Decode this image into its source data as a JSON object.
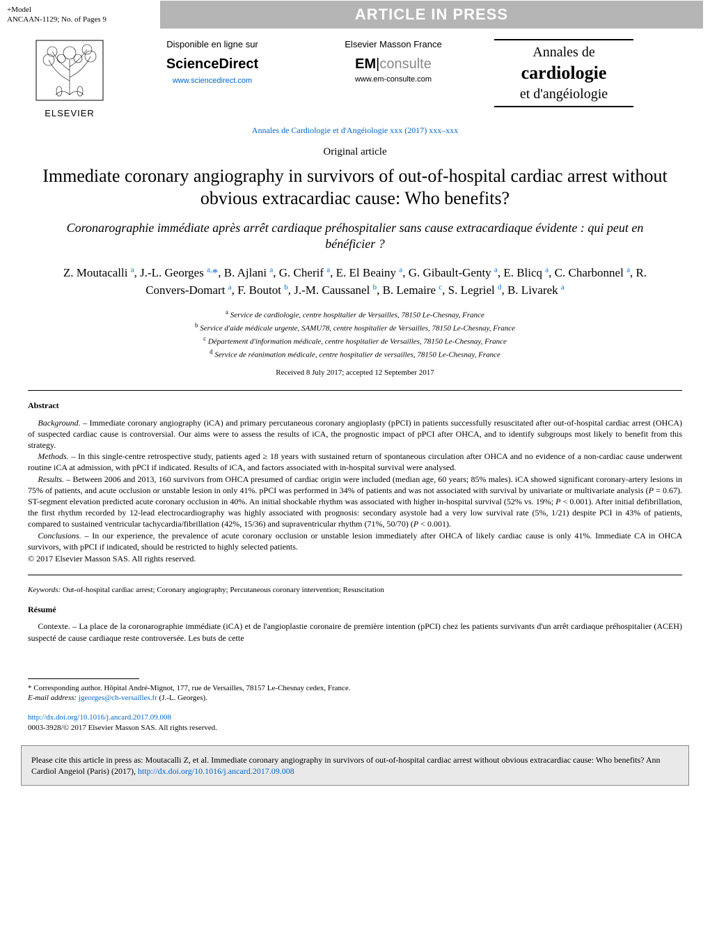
{
  "header": {
    "model_line1": "+Model",
    "model_line2": "ANCAAN-1129;    No. of Pages 9",
    "aip_text": "ARTICLE IN PRESS"
  },
  "banner": {
    "elsevier_label": "ELSEVIER",
    "sd_top": "Disponible en ligne sur",
    "sd_brand": "ScienceDirect",
    "sd_link": "www.sciencedirect.com",
    "em_top": "Elsevier Masson France",
    "em_brand_bold": "EM",
    "em_brand_thin": "consulte",
    "em_link": "www.em-consulte.com",
    "journal_line1": "Annales de",
    "journal_line2": "cardiologie",
    "journal_line3": "et d'angéiologie",
    "annals_citation": "Annales de Cardiologie et d'Angéiologie xxx (2017) xxx–xxx"
  },
  "article": {
    "type": "Original article",
    "title_en": "Immediate coronary angiography in survivors of out-of-hospital cardiac arrest without obvious extracardiac cause: Who benefits?",
    "title_fr": "Coronarographie immédiate après arrêt cardiaque préhospitalier sans cause extracardiaque évidente : qui peut en bénéficier ?",
    "authors_html": "Z. Moutacalli <sup>a</sup>, J.-L. Georges <sup>a,</sup><span class='ast'>*</span>, B. Ajlani <sup>a</sup>, G. Cherif <sup>a</sup>, E. El Beainy <sup>a</sup>, G. Gibault-Genty <sup>a</sup>, E. Blicq <sup>a</sup>, C. Charbonnel <sup>a</sup>, R. Convers-Domart <sup>a</sup>, F. Boutot <sup>b</sup>, J.-M. Caussanel <sup>b</sup>, B. Lemaire <sup>c</sup>, S. Legriel <sup>d</sup>, B. Livarek <sup>a</sup>",
    "affiliations": [
      "<sup>a</sup> Service de cardiologie, centre hospitalier de Versailles, 78150 Le-Chesnay, France",
      "<sup>b</sup> Service d'aide médicale urgente, SAMU78, centre hospitalier de Versailles, 78150 Le-Chesnay, France",
      "<sup>c</sup> Département d'information médicale, centre hospitalier de Versailles, 78150 Le-Chesnay, France",
      "<sup>d</sup> Service de réanimation médicale, centre hospitalier de versailles, 78150 Le-Chesnay, France"
    ],
    "dates": "Received 8 July 2017; accepted 12 September 2017"
  },
  "abstract": {
    "heading": "Abstract",
    "background": "<span class='ital-lead'>Background.</span> – Immediate coronary angiography (iCA) and primary percutaneous coronary angioplasty (pPCI) in patients successfully resuscitated after out-of-hospital cardiac arrest (OHCA) of suspected cardiac cause is controversial. Our aims were to assess the results of iCA, the prognostic impact of pPCI after OHCA, and to identify subgroups most likely to benefit from this strategy.",
    "methods": "<span class='ital-lead'>Methods.</span> – In this single-centre retrospective study, patients aged ≥ 18 years with sustained return of spontaneous circulation after OHCA and no evidence of a non-cardiac cause underwent routine iCA at admission, with pPCI if indicated. Results of iCA, and factors associated with in-hospital survival were analysed.",
    "results": "<span class='ital-lead'>Results.</span> – Between 2006 and 2013, 160 survivors from OHCA presumed of cardiac origin were included (median age, 60 years; 85% males). iCA showed significant coronary-artery lesions in 75% of patients, and acute occlusion or unstable lesion in only 41%. pPCI was performed in 34% of patients and was not associated with survival by univariate or multivariate analysis (<i>P</i> = 0.67). ST-segment elevation predicted acute coronary occlusion in 40%. An initial shockable rhythm was associated with higher in-hospital survival (52% vs. 19%; <i>P</i> < 0.001). After initial defibrillation, the first rhythm recorded by 12-lead electrocardiography was highly associated with prognosis: secondary asystole had a very low survival rate (5%, 1/21) despite PCI in 43% of patients, compared to sustained ventricular tachycardia/fibrillation (42%, 15/36) and supraventricular rhythm (71%, 50/70) (<i>P</i> < 0.001).",
    "conclusions": "<span class='ital-lead'>Conclusions.</span> – In our experience, the prevalence of acute coronary occlusion or unstable lesion immediately after OHCA of likely cardiac cause is only 41%. Immediate CA in OHCA survivors, with pPCI if indicated, should be restricted to highly selected patients.",
    "copyright": "© 2017 Elsevier Masson SAS. All rights reserved."
  },
  "keywords": {
    "label": "Keywords:",
    "values": "Out-of-hospital cardiac arrest; Coronary angiography; Percutaneous coronary intervention; Resuscitation"
  },
  "resume": {
    "heading": "Résumé",
    "contexte": "<span class='ital-lead'>Contexte.</span> – La place de la coronarographie immédiate (iCA) et de l'angioplastie coronaire de première intention (pPCI) chez les patients survivants d'un arrêt cardiaque préhospitalier (ACEH) suspecté de cause cardiaque reste controversée. Les buts de cette"
  },
  "footnotes": {
    "corresponding": "* Corresponding author. Hôpital André-Mignot, 177, rue de Versailles, 78157 Le-Chesnay cedex, France.",
    "email_label": "E-mail address:",
    "email": "jgeorges@ch-versailles.fr",
    "email_person": "(J.-L. Georges)."
  },
  "doi": {
    "link": "http://dx.doi.org/10.1016/j.ancard.2017.09.008",
    "issn_line": "0003-3928/© 2017 Elsevier Masson SAS. All rights reserved."
  },
  "cite_box": {
    "text_pre": "Please cite this article in press as: Moutacalli Z, et al. Immediate coronary angiography in survivors of out-of-hospital cardiac arrest without obvious extracardiac cause: Who benefits? Ann Cardiol Angeiol (Paris) (2017), ",
    "doi": "http://dx.doi.org/10.1016/j.ancard.2017.09.008"
  }
}
